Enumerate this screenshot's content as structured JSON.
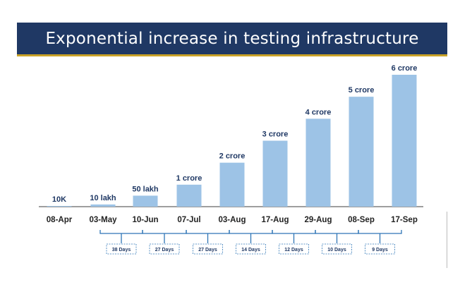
{
  "title": "Exponential increase in testing infrastructure",
  "chart_data": {
    "type": "bar",
    "title": "Exponential increase in testing infrastructure",
    "categories": [
      "08-Apr",
      "03-May",
      "10-Jun",
      "07-Jul",
      "03-Aug",
      "17-Aug",
      "29-Aug",
      "08-Sep",
      "17-Sep"
    ],
    "values": [
      10000,
      1000000,
      5000000,
      10000000,
      20000000,
      30000000,
      40000000,
      50000000,
      60000000
    ],
    "data_labels": [
      "10K",
      "10 lakh",
      "50 lakh",
      "1 crore",
      "2 crore",
      "3 crore",
      "4 crore",
      "5 crore",
      "6 crore"
    ],
    "ylim": [
      0,
      60000000
    ],
    "grid": false,
    "legend": "none",
    "bar_color": "#9dc3e6",
    "intervals": [
      "38 Days",
      "27 Days",
      "27 Days",
      "14 Days",
      "12 Days",
      "10 Days",
      "9 Days"
    ]
  }
}
